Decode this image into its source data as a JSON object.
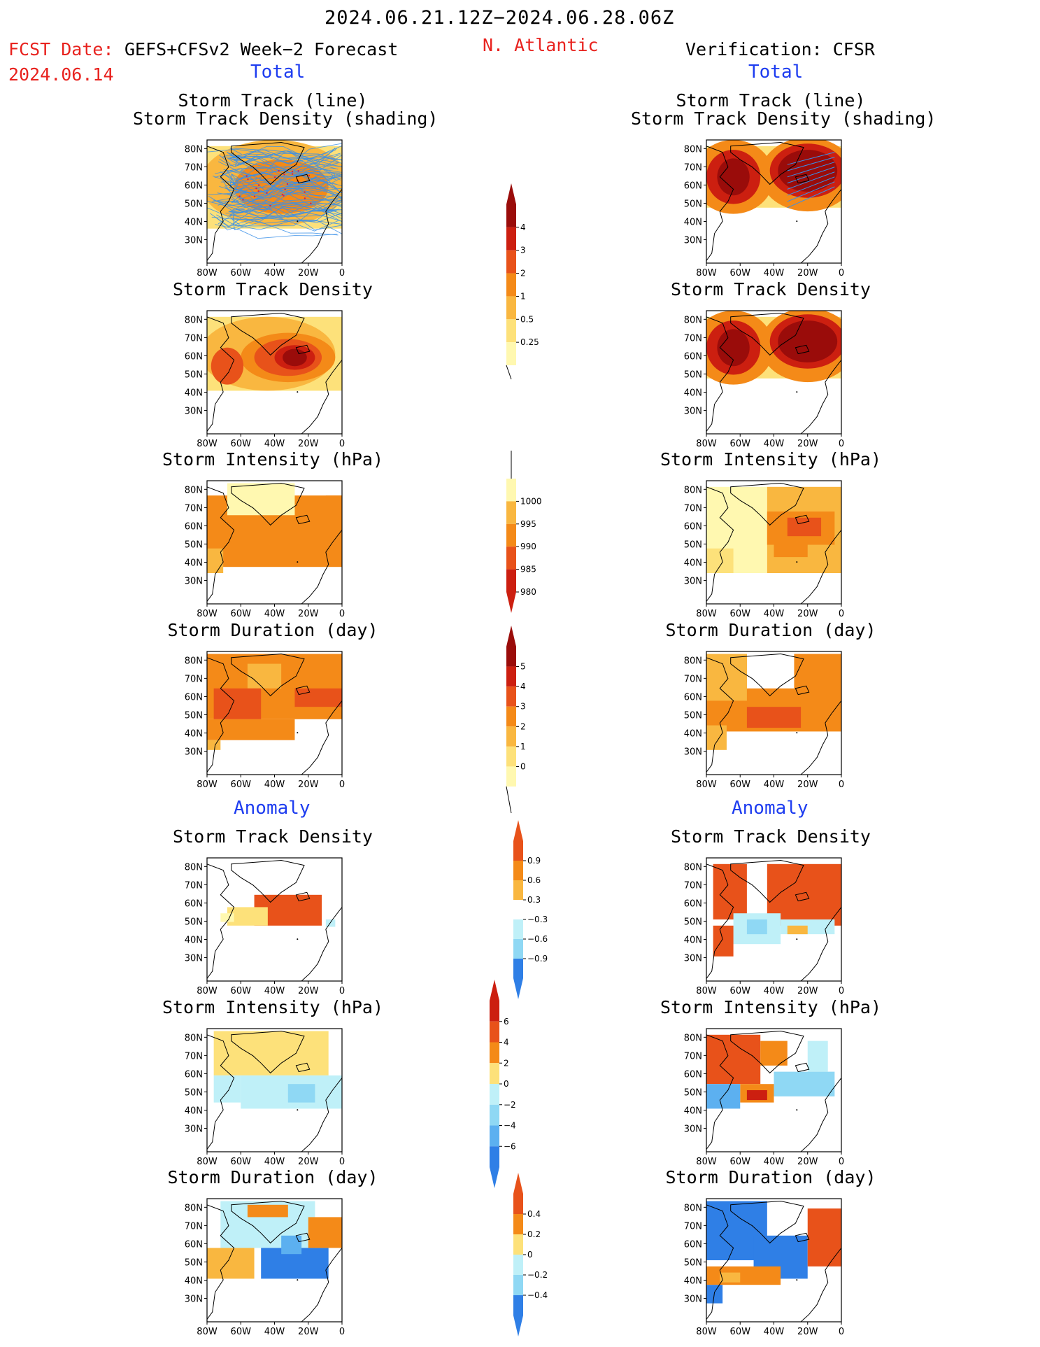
{
  "header": {
    "period": "2024.06.21.12Z−2024.06.28.06Z",
    "fcst_label": "FCST Date:",
    "fcst_model": "GEFS+CFSv2 Week−2 Forecast",
    "fcst_date": "2024.06.14",
    "region": "N. Atlantic",
    "verification": "Verification: CFSR"
  },
  "sections": {
    "total_left": "Total",
    "total_right": "Total",
    "anomaly_left": "Anomaly",
    "anomaly_right": "Anomaly"
  },
  "panel_titles": {
    "track": "Storm Track (line)",
    "track2": "Storm Track Density (shading)",
    "density": "Storm Track Density",
    "intensity": "Storm Intensity (hPa)",
    "duration": "Storm Duration (day)"
  },
  "axes": {
    "lat_ticks": [
      "80N",
      "70N",
      "60N",
      "50N",
      "40N",
      "30N"
    ],
    "lon_ticks": [
      "80W",
      "60W",
      "40W",
      "20W",
      "0"
    ]
  },
  "colorbars": {
    "density_total": [
      "4",
      "3",
      "2",
      "1",
      "0.5",
      "0.25"
    ],
    "intensity_total": [
      "1000",
      "995",
      "990",
      "985",
      "980"
    ],
    "duration_total": [
      "5",
      "4",
      "3",
      "2",
      "1",
      "0"
    ],
    "density_anom": [
      "0.9",
      "0.6",
      "0.3",
      "−0.3",
      "−0.6",
      "−0.9"
    ],
    "intensity_anom": [
      "6",
      "4",
      "2",
      "0",
      "−2",
      "−4",
      "−6"
    ],
    "duration_anom": [
      "0.4",
      "0.2",
      "0",
      "−0.2",
      "−0.4"
    ]
  },
  "colors": {
    "warm": [
      "#fff8b0",
      "#fde17a",
      "#f9b740",
      "#f48a18",
      "#e8521a",
      "#cc1f10",
      "#9a0c0a"
    ],
    "cool": [
      "#bff0f8",
      "#8fd8f4",
      "#5cb0f0",
      "#2f7fe6",
      "#1650c8"
    ],
    "track_line": "#3a8fe8"
  }
}
